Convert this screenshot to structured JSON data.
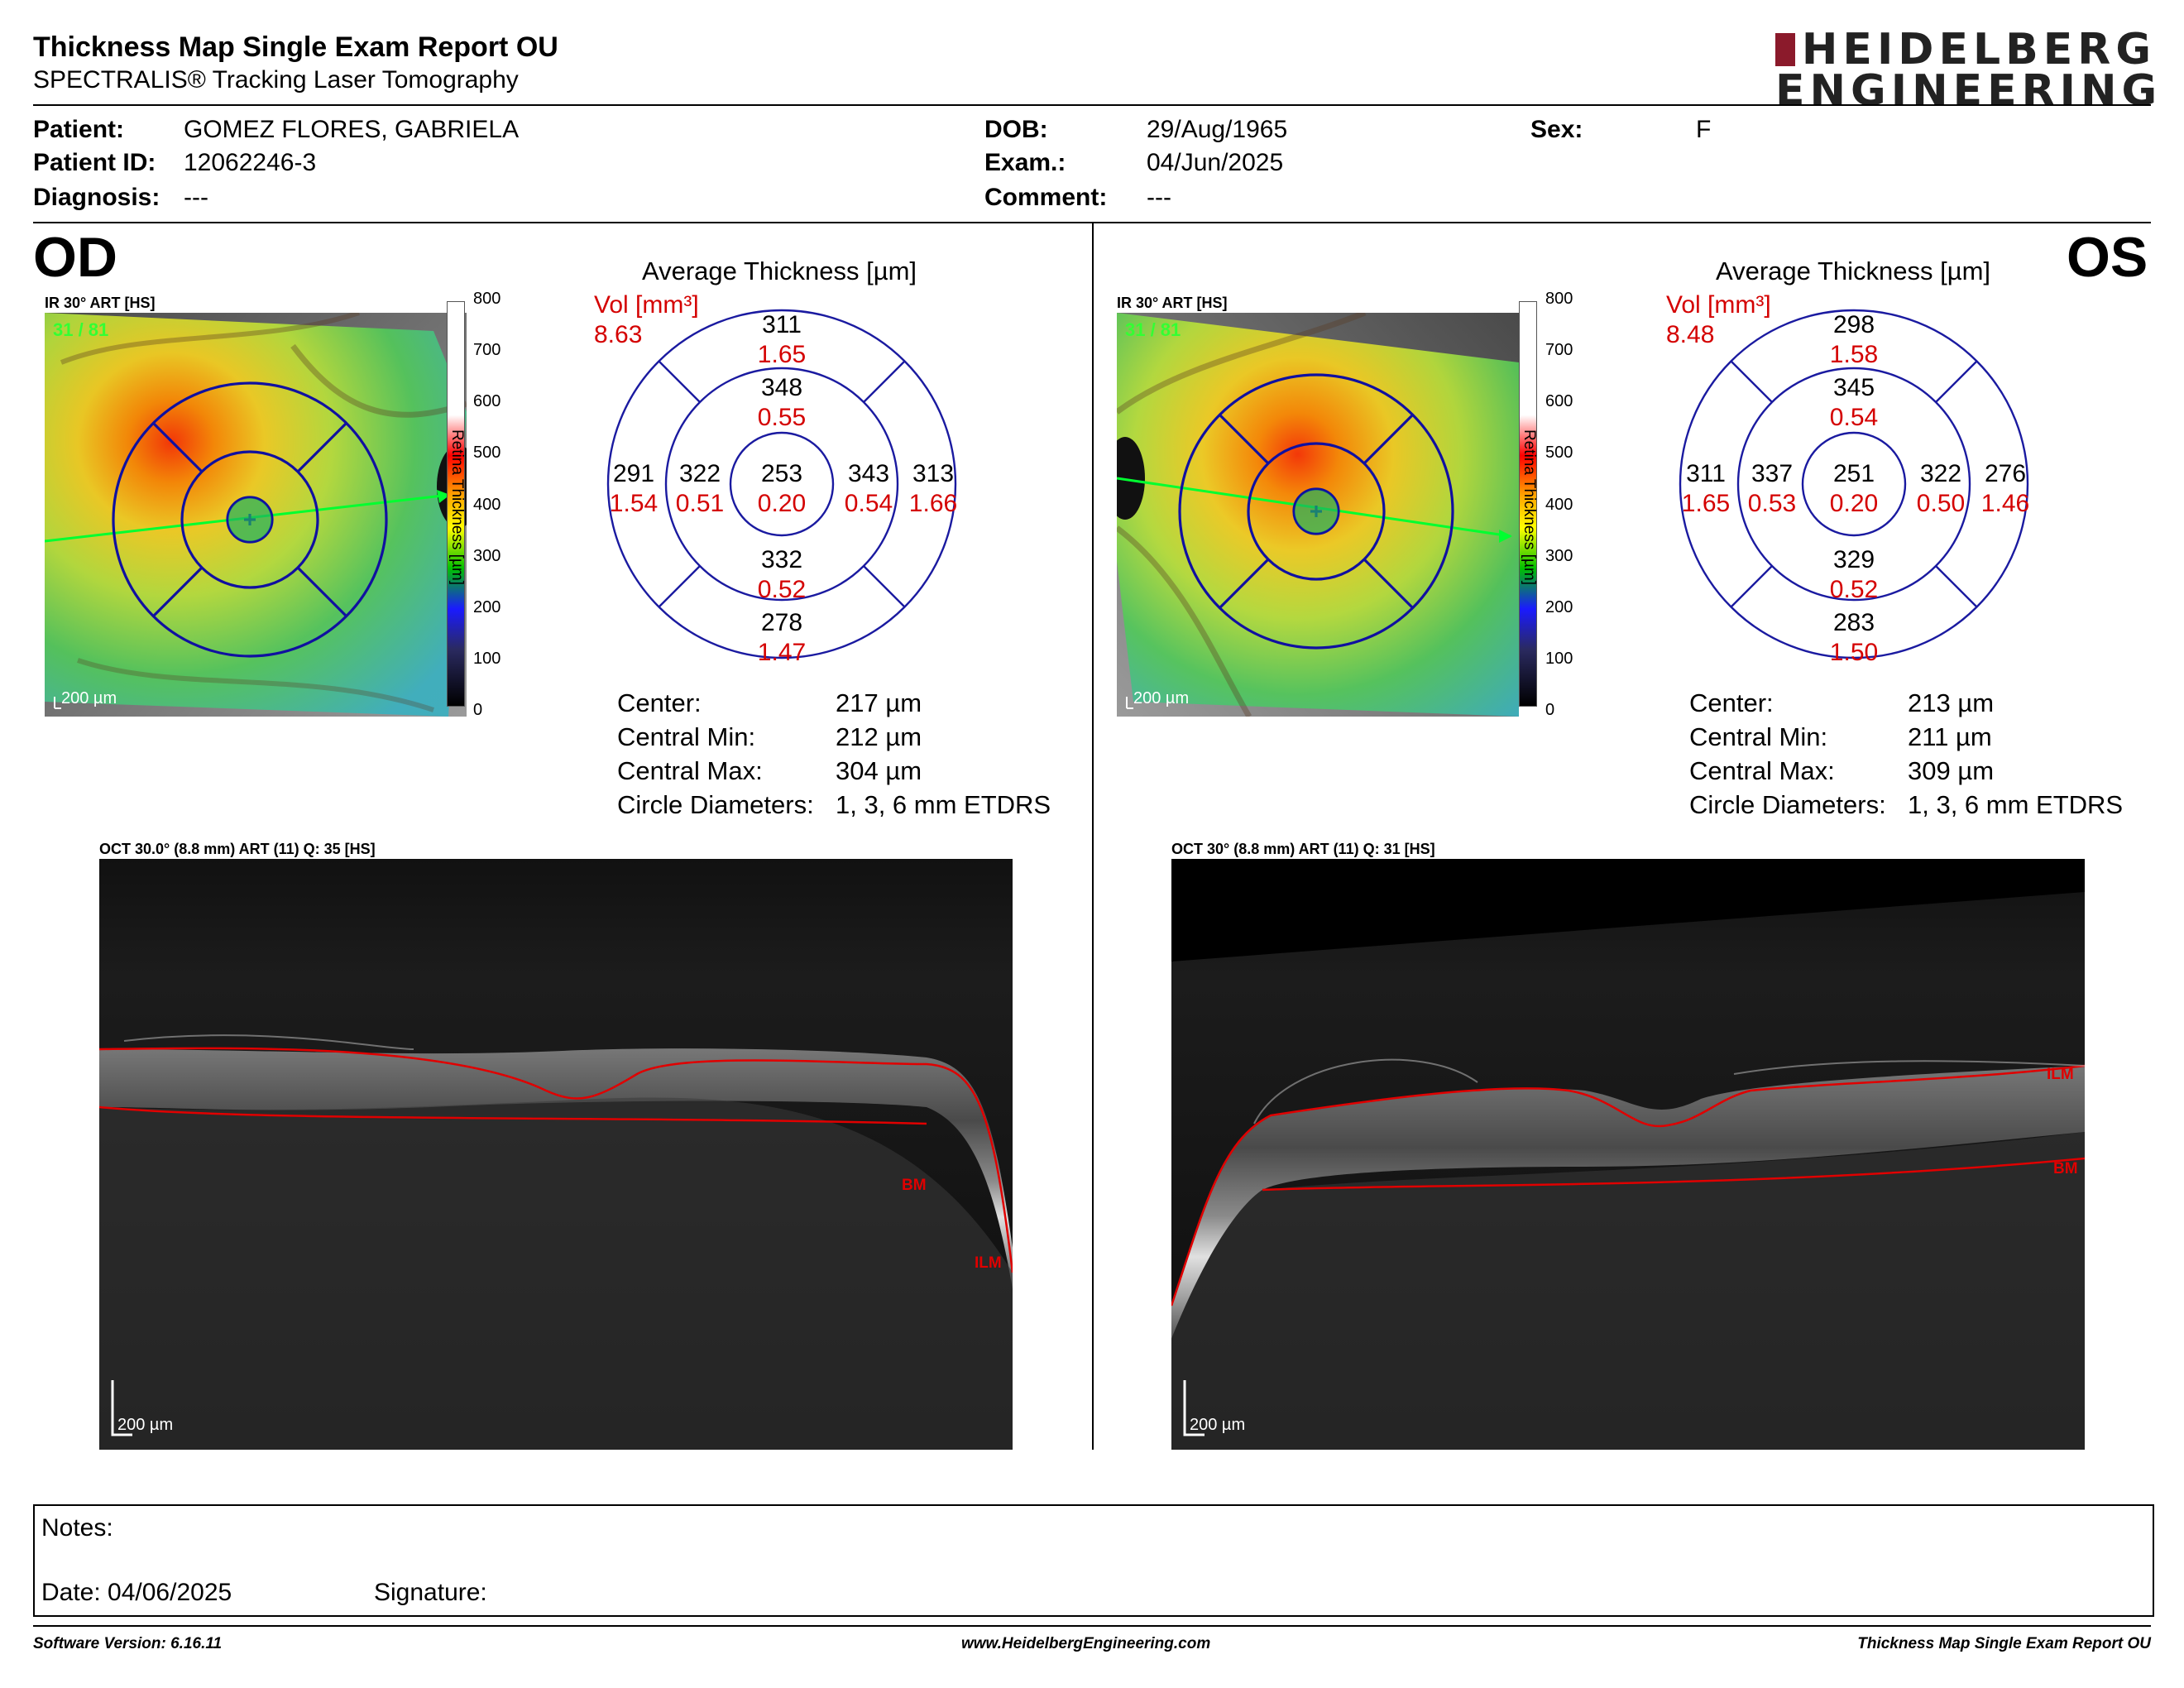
{
  "header": {
    "title": "Thickness Map Single Exam Report OU",
    "subtitle": "SPECTRALIS® Tracking Laser Tomography",
    "logo_line1": "HEIDELBERG",
    "logo_line2": "ENGINEERING"
  },
  "patient": {
    "patient_label": "Patient:",
    "patient_value": "GOMEZ FLORES, GABRIELA",
    "id_label": "Patient ID:",
    "id_value": "12062246-3",
    "diagnosis_label": "Diagnosis:",
    "diagnosis_value": "---",
    "dob_label": "DOB:",
    "dob_value": "29/Aug/1965",
    "exam_label": "Exam.:",
    "exam_value": "04/Jun/2025",
    "comment_label": "Comment:",
    "comment_value": "---",
    "sex_label": "Sex:",
    "sex_value": "F"
  },
  "od": {
    "eye": "OD",
    "fundus_label": "IR 30° ART [HS]",
    "frames": "31 / 81",
    "scale_bar": "200 µm",
    "colorbar_ticks": [
      "800",
      "700",
      "600",
      "500",
      "400",
      "300",
      "200",
      "100",
      "0"
    ],
    "colorbar_label": "Retina  Thickness [µm]",
    "avg_title": "Average Thickness [µm]",
    "vol_label": "Vol [mm³]",
    "vol_value": "8.63",
    "sectors": {
      "outer_top": [
        "311",
        "1.65"
      ],
      "inner_top": [
        "348",
        "0.55"
      ],
      "outer_left": [
        "291",
        "1.54"
      ],
      "inner_left": [
        "322",
        "0.51"
      ],
      "center": [
        "253",
        "0.20"
      ],
      "inner_right": [
        "343",
        "0.54"
      ],
      "outer_right": [
        "313",
        "1.66"
      ],
      "inner_bottom": [
        "332",
        "0.52"
      ],
      "outer_bottom": [
        "278",
        "1.47"
      ]
    },
    "stats": [
      {
        "label": "Center:",
        "value": "217 µm"
      },
      {
        "label": "Central Min:",
        "value": "212 µm"
      },
      {
        "label": "Central Max:",
        "value": "304 µm"
      },
      {
        "label": "Circle Diameters:",
        "value": "1, 3, 6 mm ETDRS"
      }
    ],
    "oct_label": "OCT 30.0° (8.8 mm) ART (11) Q: 35 [HS]",
    "oct_scale": "200 µm",
    "ilm": "ILM",
    "bm": "BM"
  },
  "os": {
    "eye": "OS",
    "fundus_label": "IR 30° ART [HS]",
    "frames": "31 / 81",
    "scale_bar": "200 µm",
    "colorbar_ticks": [
      "800",
      "700",
      "600",
      "500",
      "400",
      "300",
      "200",
      "100",
      "0"
    ],
    "colorbar_label": "Retina  Thickness [µm]",
    "avg_title": "Average Thickness [µm]",
    "vol_label": "Vol [mm³]",
    "vol_value": "8.48",
    "sectors": {
      "outer_top": [
        "298",
        "1.58"
      ],
      "inner_top": [
        "345",
        "0.54"
      ],
      "outer_left": [
        "311",
        "1.65"
      ],
      "inner_left": [
        "337",
        "0.53"
      ],
      "center": [
        "251",
        "0.20"
      ],
      "inner_right": [
        "322",
        "0.50"
      ],
      "outer_right": [
        "276",
        "1.46"
      ],
      "inner_bottom": [
        "329",
        "0.52"
      ],
      "outer_bottom": [
        "283",
        "1.50"
      ]
    },
    "stats": [
      {
        "label": "Center:",
        "value": "213 µm"
      },
      {
        "label": "Central Min:",
        "value": "211 µm"
      },
      {
        "label": "Central Max:",
        "value": "309 µm"
      },
      {
        "label": "Circle Diameters:",
        "value": "1, 3, 6 mm ETDRS"
      }
    ],
    "oct_label": "OCT 30° (8.8 mm) ART (11) Q: 31 [HS]",
    "oct_scale": "200 µm",
    "ilm": "ILM",
    "bm": "BM"
  },
  "notes": {
    "notes_label": "Notes:",
    "date_label": "Date: 04/06/2025",
    "signature_label": "Signature:"
  },
  "footer": {
    "version": "Software Version: 6.16.11",
    "url": "www.HeidelbergEngineering.com",
    "report": "Thickness Map Single Exam Report OU"
  },
  "colors": {
    "accent_red": "#d40000",
    "grid_blue": "#1a1aa0",
    "logo_red": "#8b1a2b"
  }
}
